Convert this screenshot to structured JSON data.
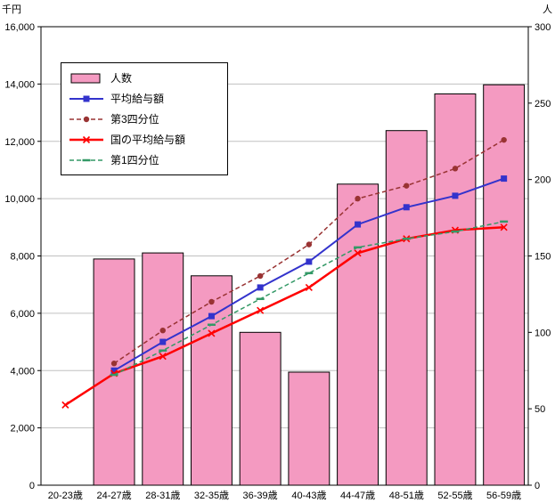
{
  "chart_data": {
    "type": "combo",
    "chart_types": [
      "bar",
      "line"
    ],
    "categories": [
      "20-23歳",
      "24-27歳",
      "28-31歳",
      "32-35歳",
      "36-39歳",
      "40-43歳",
      "44-47歳",
      "48-51歳",
      "52-55歳",
      "56-59歳"
    ],
    "bar_series": {
      "name": "人数",
      "axis": "right",
      "color": "#f49ac1",
      "border_color": "#000000",
      "values": [
        null,
        148,
        152,
        137,
        100,
        74,
        197,
        232,
        256,
        262
      ]
    },
    "line_series": [
      {
        "name": "平均給与額",
        "axis": "left",
        "color": "#3333cc",
        "style": "solid",
        "marker": "square",
        "width": 2,
        "values": [
          null,
          4000,
          5000,
          5900,
          6900,
          7800,
          9100,
          9700,
          10100,
          10700
        ]
      },
      {
        "name": "第3四分位",
        "axis": "left",
        "color": "#993333",
        "style": "dashed",
        "marker": "circle",
        "width": 1.5,
        "values": [
          null,
          4250,
          5400,
          6400,
          7300,
          8400,
          10000,
          10450,
          11050,
          12050
        ]
      },
      {
        "name": "国の平均給与額",
        "axis": "left",
        "color": "#ff0000",
        "style": "solid",
        "marker": "x",
        "width": 2.5,
        "values": [
          2800,
          3900,
          4500,
          5300,
          6100,
          6900,
          8100,
          8600,
          8900,
          9000
        ]
      },
      {
        "name": "第1四分位",
        "axis": "left",
        "color": "#339966",
        "style": "dashed",
        "marker": "dash",
        "width": 1.5,
        "values": [
          null,
          3850,
          4700,
          5600,
          6500,
          7400,
          8300,
          8600,
          8850,
          9200
        ]
      }
    ],
    "left_axis": {
      "label": "千円",
      "min": 0,
      "max": 16000,
      "step": 2000
    },
    "right_axis": {
      "label": "人",
      "min": 0,
      "max": 300,
      "step": 50
    },
    "grid": true,
    "gridline_color": "#c0c0c0",
    "plot_border_color": "#000000",
    "legend_position": "top-left-inside"
  }
}
